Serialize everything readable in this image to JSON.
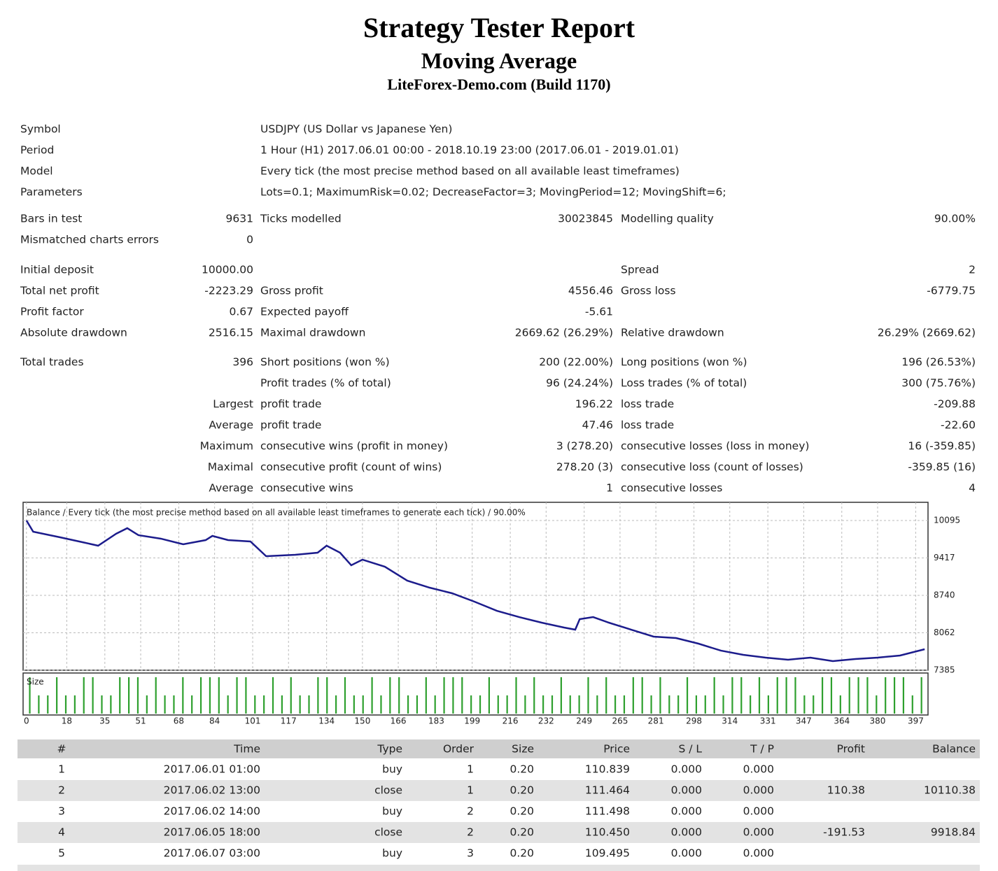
{
  "header": {
    "title": "Strategy Tester Report",
    "subtitle": "Moving Average",
    "broker": "LiteForex-Demo.com (Build 1170)"
  },
  "info": [
    {
      "label": "Symbol",
      "value": "USDJPY (US Dollar vs Japanese Yen)"
    },
    {
      "label": "Period",
      "value": "1 Hour (H1) 2017.06.01 00:00 - 2018.10.19 23:00 (2017.06.01 - 2019.01.01)"
    },
    {
      "label": "Model",
      "value": "Every tick (the most precise method based on all available least timeframes)"
    },
    {
      "label": "Parameters",
      "value": "Lots=0.1; MaximumRisk=0.02; DecreaseFactor=3; MovingPeriod=12; MovingShift=6;"
    }
  ],
  "summary": [
    [
      [
        "Bars in test",
        "9631",
        "Ticks modelled",
        "30023845",
        "Modelling quality",
        "90.00%"
      ],
      [
        "Mismatched charts errors",
        "0",
        null,
        null,
        null,
        null
      ]
    ],
    [
      [
        "Initial deposit",
        "10000.00",
        null,
        null,
        "Spread",
        "2"
      ],
      [
        "Total net profit",
        "-2223.29",
        "Gross profit",
        "4556.46",
        "Gross loss",
        "-6779.75"
      ],
      [
        "Profit factor",
        "0.67",
        "Expected payoff",
        "-5.61",
        null,
        null
      ],
      [
        "Absolute drawdown",
        "2516.15",
        "Maximal drawdown",
        "2669.62 (26.29%)",
        "Relative drawdown",
        "26.29% (2669.62)"
      ]
    ],
    [
      [
        "Total trades",
        "396",
        "Short positions (won %)",
        "200 (22.00%)",
        "Long positions (won %)",
        "196 (26.53%)"
      ],
      [
        null,
        null,
        "Profit trades (% of total)",
        "96 (24.24%)",
        "Loss trades (% of total)",
        "300 (75.76%)"
      ],
      [
        null,
        "Largest",
        "profit trade",
        "196.22",
        "loss trade",
        "-209.88"
      ],
      [
        null,
        "Average",
        "profit trade",
        "47.46",
        "loss trade",
        "-22.60"
      ],
      [
        null,
        "Maximum",
        "consecutive wins (profit in money)",
        "3 (278.20)",
        "consecutive losses (loss in money)",
        "16 (-359.85)"
      ],
      [
        null,
        "Maximal",
        "consecutive profit (count of wins)",
        "278.20 (3)",
        "consecutive loss (count of losses)",
        "-359.85 (16)"
      ],
      [
        null,
        "Average",
        "consecutive wins",
        "1",
        "consecutive losses",
        "4"
      ]
    ]
  ],
  "chart_data": {
    "type": "line",
    "title": "Balance / Every tick (the most precise method based on all available least timeframes to generate each tick) / 90.00%",
    "x": [
      0,
      3,
      15,
      25,
      32,
      40,
      45,
      50,
      60,
      70,
      80,
      83,
      90,
      100,
      107,
      120,
      130,
      134,
      140,
      145,
      150,
      160,
      170,
      180,
      190,
      200,
      210,
      220,
      230,
      240,
      245,
      247,
      253,
      260,
      270,
      280,
      290,
      300,
      310,
      320,
      330,
      340,
      350,
      360,
      370,
      380,
      390,
      401
    ],
    "values": [
      10095,
      9892,
      9791,
      9702,
      9639,
      9854,
      9956,
      9829,
      9766,
      9664,
      9740,
      9816,
      9740,
      9715,
      9449,
      9474,
      9512,
      9639,
      9512,
      9285,
      9386,
      9259,
      9006,
      8879,
      8778,
      8626,
      8461,
      8347,
      8246,
      8157,
      8119,
      8309,
      8347,
      8246,
      8119,
      7993,
      7967,
      7866,
      7740,
      7664,
      7613,
      7575,
      7613,
      7550,
      7588,
      7613,
      7651,
      7765
    ],
    "color": "#1c1c8c",
    "xlim": [
      -1.5,
      402.5
    ],
    "xticks": [
      0,
      18,
      35,
      51,
      68,
      84,
      101,
      117,
      134,
      150,
      166,
      183,
      199,
      216,
      232,
      249,
      265,
      281,
      298,
      314,
      331,
      347,
      364,
      380,
      397
    ],
    "ylim": [
      7385,
      10424
    ],
    "yticks": [
      10095,
      9417,
      8740,
      8062,
      7385
    ],
    "grid": true,
    "size": {
      "label": "Size",
      "color": "#2ea02e",
      "values": [
        2,
        1,
        1,
        2,
        1,
        1,
        2,
        2,
        1,
        1,
        2,
        2,
        2,
        1,
        2,
        1,
        1,
        2,
        1,
        2,
        2,
        2,
        1,
        2,
        2,
        1,
        1,
        2,
        1,
        2,
        1,
        1,
        2,
        2,
        1,
        2,
        1,
        1,
        2,
        1,
        2,
        2,
        1,
        1,
        2,
        1,
        2,
        2,
        2,
        1,
        1,
        2,
        1,
        1,
        2,
        1,
        2,
        1,
        1,
        2,
        1,
        1,
        2,
        1,
        2,
        1,
        1,
        2,
        2,
        1,
        2,
        1,
        1,
        2,
        1,
        1,
        2,
        1,
        2,
        2,
        1,
        2,
        1,
        2,
        2,
        2,
        1,
        1,
        2,
        2,
        1,
        2,
        2,
        2,
        1,
        2,
        2,
        2,
        1,
        2
      ]
    }
  },
  "trades": {
    "columns": [
      "#",
      "Time",
      "Type",
      "Order",
      "Size",
      "Price",
      "S / L",
      "T / P",
      "Profit",
      "Balance"
    ],
    "rows": [
      [
        "1",
        "2017.06.01 01:00",
        "buy",
        "1",
        "0.20",
        "110.839",
        "0.000",
        "0.000",
        null,
        null
      ],
      [
        "2",
        "2017.06.02 13:00",
        "close",
        "1",
        "0.20",
        "111.464",
        "0.000",
        "0.000",
        "110.38",
        "10110.38"
      ],
      [
        "3",
        "2017.06.02 14:00",
        "buy",
        "2",
        "0.20",
        "111.498",
        "0.000",
        "0.000",
        null,
        null
      ],
      [
        "4",
        "2017.06.05 18:00",
        "close",
        "2",
        "0.20",
        "110.450",
        "0.000",
        "0.000",
        "-191.53",
        "9918.84"
      ],
      [
        "5",
        "2017.06.07 03:00",
        "buy",
        "3",
        "0.20",
        "109.495",
        "0.000",
        "0.000",
        null,
        null
      ]
    ]
  }
}
